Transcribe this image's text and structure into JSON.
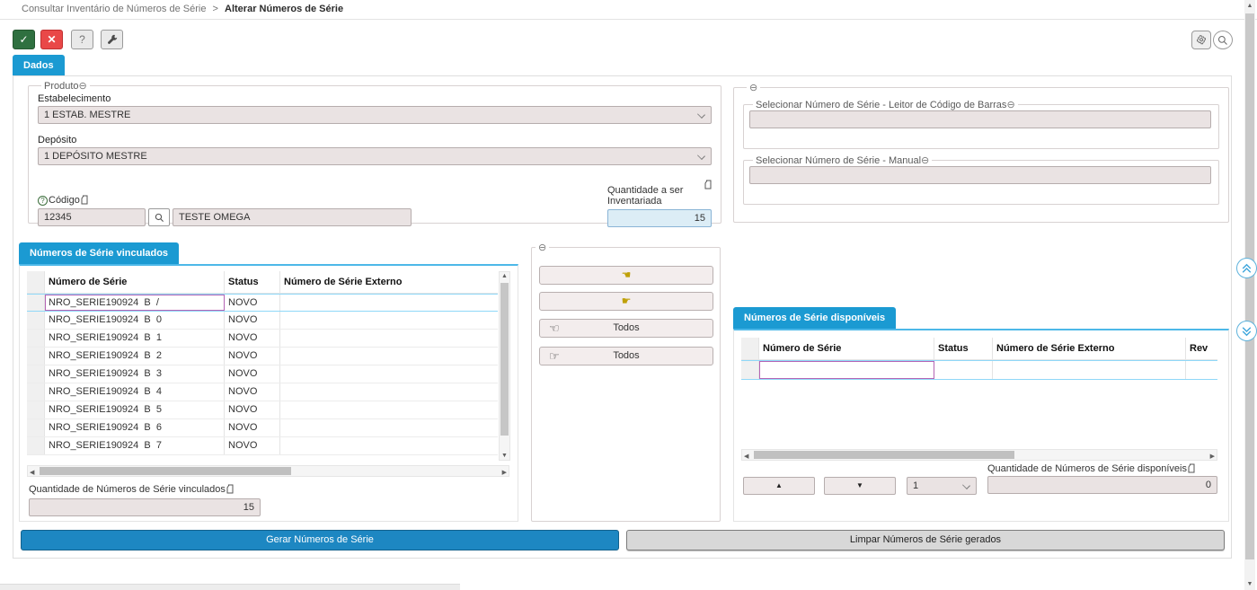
{
  "breadcrumb": {
    "parent": "Consultar Inventário de Números de Série",
    "separator": ">",
    "current": "Alterar Números de Série"
  },
  "toolbar": {
    "confirm": "✓",
    "cancel": "✕",
    "help": "?"
  },
  "tabs": {
    "dados": "Dados"
  },
  "produto": {
    "legend": "Produto",
    "estabelecimento_label": "Estabelecimento",
    "estabelecimento_value": "1 ESTAB. MESTRE",
    "deposito_label": "Depósito",
    "deposito_value": "1 DEPÓSITO MESTRE",
    "codigo_label": "Código",
    "codigo_value": "12345",
    "descricao_value": "TESTE OMEGA",
    "quantidade_label_line1": "Quantidade a ser",
    "quantidade_label_line2": "Inventariada",
    "quantidade_value": "15"
  },
  "selecionar": {
    "leitor_legend": "Selecionar Número de Série - Leitor de Código de Barras",
    "leitor_value": "",
    "manual_legend": "Selecionar Número de Série - Manual",
    "manual_value": ""
  },
  "vinculados": {
    "tab": "Números de Série vinculados",
    "columns": {
      "serial": "Número de Série",
      "status": "Status",
      "externo": "Número de Série Externo"
    },
    "rows": [
      {
        "serial": "NRO_SERIE190924  B  /",
        "status": "NOVO",
        "externo": ""
      },
      {
        "serial": "NRO_SERIE190924  B  0",
        "status": "NOVO",
        "externo": ""
      },
      {
        "serial": "NRO_SERIE190924  B  1",
        "status": "NOVO",
        "externo": ""
      },
      {
        "serial": "NRO_SERIE190924  B  2",
        "status": "NOVO",
        "externo": ""
      },
      {
        "serial": "NRO_SERIE190924  B  3",
        "status": "NOVO",
        "externo": ""
      },
      {
        "serial": "NRO_SERIE190924  B  4",
        "status": "NOVO",
        "externo": ""
      },
      {
        "serial": "NRO_SERIE190924  B  5",
        "status": "NOVO",
        "externo": ""
      },
      {
        "serial": "NRO_SERIE190924  B  6",
        "status": "NOVO",
        "externo": ""
      },
      {
        "serial": "NRO_SERIE190924  B  7",
        "status": "NOVO",
        "externo": ""
      }
    ],
    "qty_label": "Quantidade de Números de Série vinculados",
    "qty_value": "15"
  },
  "transfer": {
    "move_left_icon": "☚",
    "move_right_icon": "☛",
    "all_left_icon": "☜",
    "all_right_icon": "☞",
    "todos_label": "Todos"
  },
  "disponiveis": {
    "tab": "Números de Série disponíveis",
    "columns": {
      "serial": "Número de Série",
      "status": "Status",
      "externo": "Número de Série Externo",
      "rev": "Rev"
    },
    "empty_row": {
      "serial": "",
      "status": "",
      "externo": "",
      "rev": ""
    },
    "up_icon": "▲",
    "down_icon": "▼",
    "page_select_value": "1",
    "qty_label": "Quantidade de Números de Série disponíveis",
    "qty_value": "0"
  },
  "actions": {
    "gerar": "Gerar Números de Série",
    "limpar": "Limpar Números de Série gerados"
  },
  "colors": {
    "accent_blue": "#1b9ad2",
    "confirm_green": "#2f7040",
    "cancel_red": "#e94848",
    "selection_purple": "#b464b4",
    "selection_blue": "#8fd8f8",
    "field_bg": "#eae3e3",
    "highlight_field_bg": "#dcedf6",
    "button_blue": "#1d87c2"
  }
}
